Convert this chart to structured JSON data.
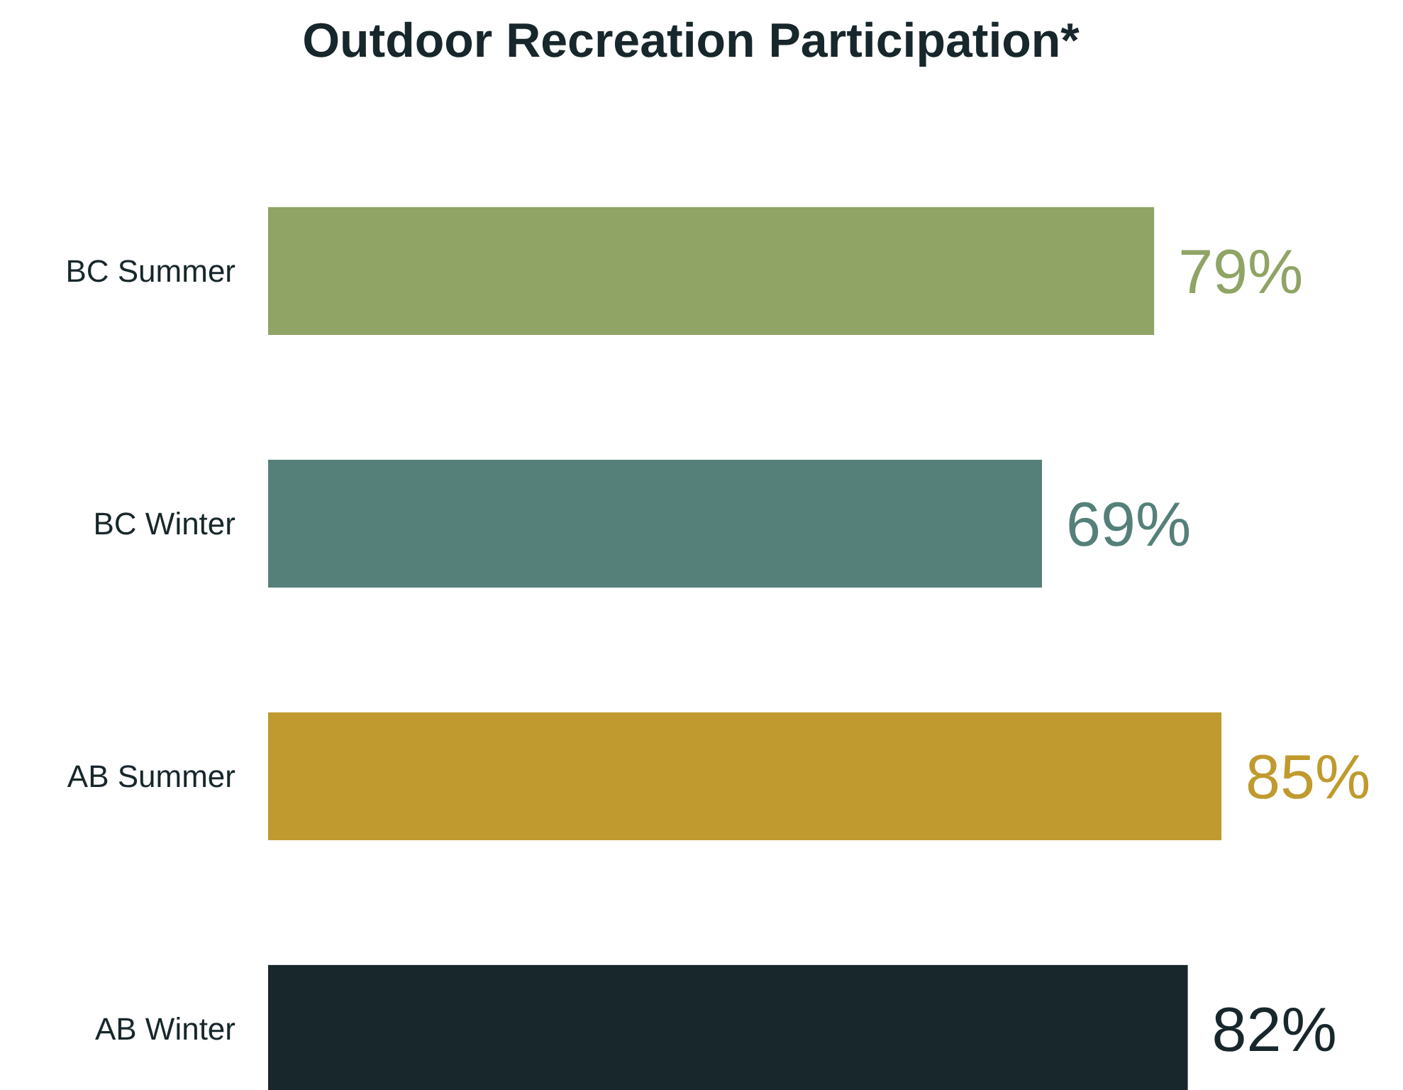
{
  "chart_data": {
    "type": "bar",
    "orientation": "horizontal",
    "title": "Outdoor Recreation Participation*",
    "categories": [
      "BC Summer",
      "BC Winter",
      "AB Summer",
      "AB Winter"
    ],
    "values": [
      79,
      69,
      85,
      82
    ],
    "colors": [
      "#8fa465",
      "#548079",
      "#c09a2e",
      "#17272b"
    ],
    "value_labels": [
      "79%",
      "69%",
      "85%",
      "82%"
    ],
    "tick_labels": "y"
  }
}
